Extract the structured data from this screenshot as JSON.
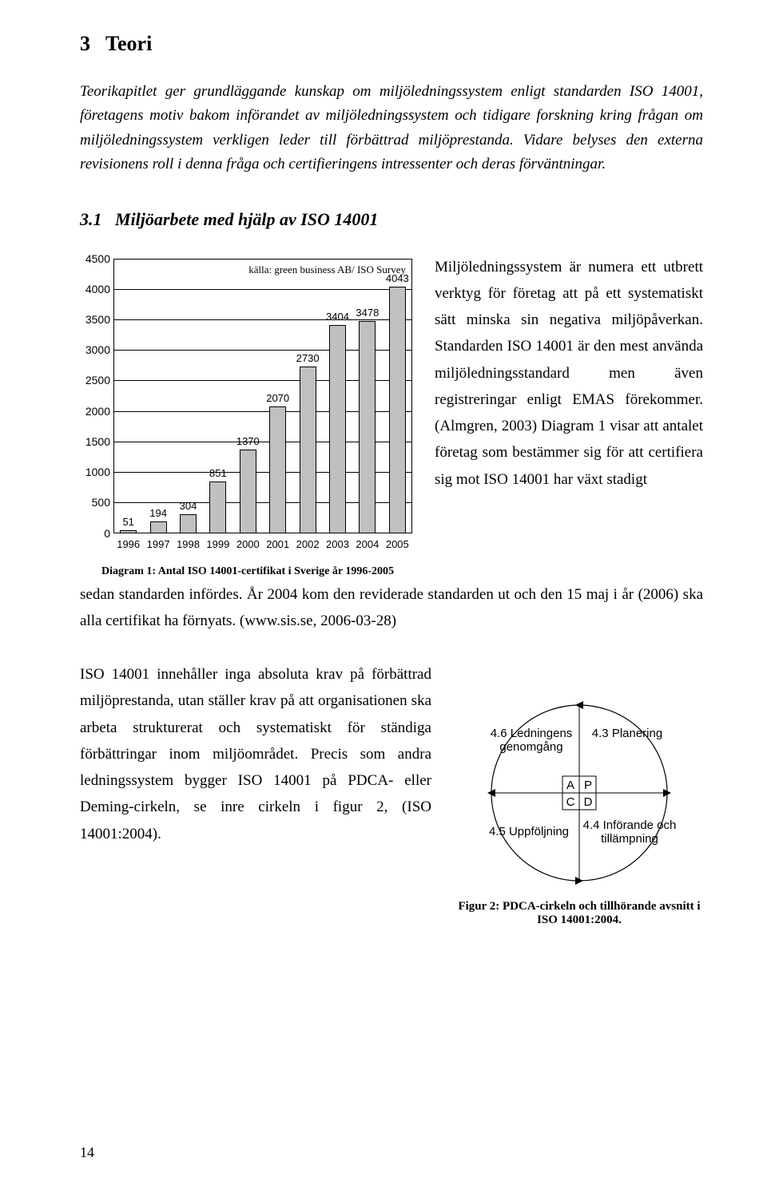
{
  "section_number": "3",
  "section_title": "Teori",
  "intro_text": "Teorikapitlet ger grundläggande kunskap om miljöledningssystem enligt standarden ISO 14001, företagens motiv bakom införandet av miljöledningssystem och tidigare forskning kring frågan om miljöledningssystem verkligen leder till förbättrad miljöprestanda. Vidare belyses den externa revisionens roll i denna fråga och certifieringens intressenter och deras förväntningar.",
  "subsection_number": "3.1",
  "subsection_title": "Miljöarbete med hjälp av ISO 14001",
  "chart": {
    "type": "bar",
    "source_label": "källa: green business AB/ ISO Survey",
    "categories": [
      "1996",
      "1997",
      "1998",
      "1999",
      "2000",
      "2001",
      "2002",
      "2003",
      "2004",
      "2005"
    ],
    "values": [
      51,
      194,
      304,
      851,
      1370,
      2070,
      2730,
      3404,
      3478,
      4043
    ],
    "bar_color": "#c0c0c0",
    "border_color": "#000000",
    "grid_color": "#000000",
    "background_color": "#ffffff",
    "ylim": [
      0,
      4500
    ],
    "ytick_step": 500,
    "yticks": [
      0,
      500,
      1000,
      1500,
      2000,
      2500,
      3000,
      3500,
      4000,
      4500
    ],
    "value_fontsize": 13,
    "tick_fontsize": 14,
    "font_family": "Arial",
    "bar_width_rel": 0.56,
    "caption": "Diagram 1: Antal ISO 14001-certifikat i Sverige år 1996-2005"
  },
  "right_paragraph": "Miljöledningssystem är numera ett utbrett verktyg för företag att på ett systematiskt sätt minska sin negativa miljöpåverkan. Standarden ISO 14001 är den mest använda miljöledningsstandard men även registreringar enligt EMAS förekommer. (Almgren, 2003) Diagram 1 visar att antalet företag som bestämmer sig för att certifiera sig mot ISO 14001 har växt stadigt",
  "continuation_paragraph": "sedan standarden infördes. År 2004 kom den reviderade standarden ut och den 15 maj i år (2006) ska alla certifikat ha förnyats. (www.sis.se, 2006-03-28)",
  "lower_paragraph": "ISO 14001 innehåller inga absoluta krav på förbättrad miljöprestanda, utan ställer krav på att organisationen ska arbeta strukturerat och systematiskt för ständiga förbättringar inom miljöområdet. Precis som andra ledningssystem bygger ISO 14001 på PDCA- eller Deming-cirkeln, se inre cirkeln i figur 2, (ISO 14001:2004).",
  "pdca": {
    "labels": {
      "top_left": "4.6 Ledningens genomgång",
      "top_right": "4.3 Planering",
      "bottom_left": "4.5 Uppföljning",
      "bottom_right": "4.4 Införande och tillämpning",
      "A": "A",
      "P": "P",
      "C": "C",
      "D": "D"
    },
    "circle_color": "#000000",
    "bg_color": "#ffffff",
    "fontsize": 15,
    "font_family": "Arial",
    "caption": "Figur 2: PDCA-cirkeln och tillhörande avsnitt i ISO 14001:2004."
  },
  "page_number": "14"
}
